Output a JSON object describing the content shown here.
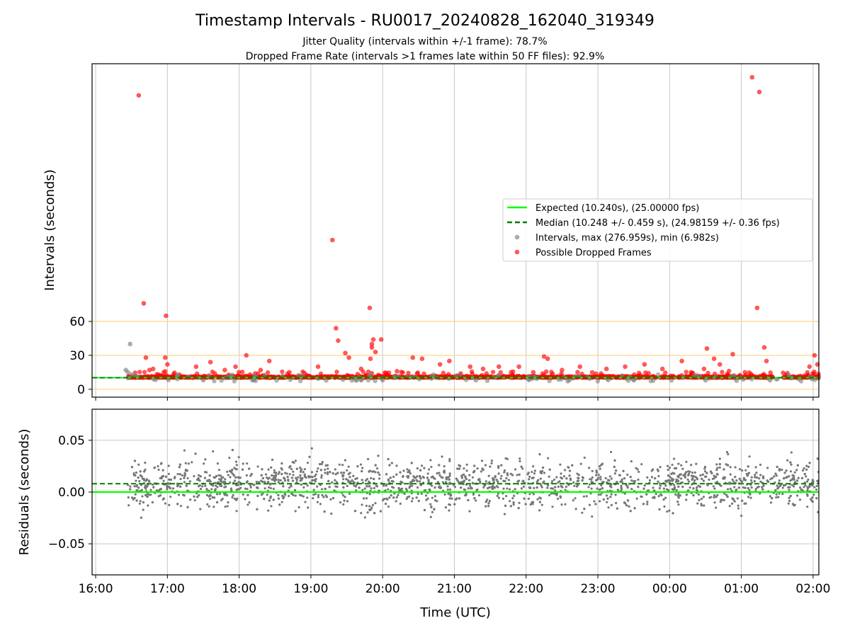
{
  "chart_data": [
    {
      "type": "scatter",
      "title": "Timestamp Intervals - RU0017_20240828_162040_319349",
      "subtitle_lines": [
        "Jitter Quality (intervals within +/-1 frame): 78.7%",
        "Dropped Frame Rate (intervals >1 frames late within 50 FF files): 92.9%"
      ],
      "xlabel": "",
      "ylabel": "Intervals (seconds)",
      "ytick_labels": [
        "0",
        "30",
        "60"
      ],
      "ytick_values": [
        0,
        30,
        60
      ],
      "ylim": [
        -7,
        288
      ],
      "xlim_hours": [
        15.95,
        26.08
      ],
      "xtick_hours": [
        16,
        17,
        18,
        19,
        20,
        21,
        22,
        23,
        24,
        25,
        26
      ],
      "grid": "vertical lines",
      "threshold_lines": [
        0,
        30,
        60
      ],
      "threshold_color": "#ffd27f",
      "expected_value": 10.24,
      "median_value": 10.248,
      "legend_position": "center-right",
      "legend": [
        {
          "label": "Expected (10.240s), (25.00000 fps)",
          "kind": "line",
          "color": "#00ff00"
        },
        {
          "label": "Median (10.248 +/- 0.459 s), (24.98159 +/- 0.36 fps)",
          "kind": "dashed-line",
          "color": "#008000"
        },
        {
          "label": "Intervals, max (276.959s), min (6.982s)",
          "kind": "marker",
          "color": "#808080"
        },
        {
          "label": "Possible Dropped Frames",
          "kind": "marker",
          "color": "#ff0000"
        }
      ],
      "series": [
        {
          "name": "Possible Dropped Frames",
          "color": "#ff0000",
          "points": [
            [
              16.6,
              260
            ],
            [
              16.67,
              76
            ],
            [
              16.7,
              28
            ],
            [
              16.98,
              65
            ],
            [
              16.97,
              28
            ],
            [
              17.0,
              22
            ],
            [
              16.75,
              17
            ],
            [
              16.8,
              18
            ],
            [
              17.95,
              20
            ],
            [
              18.1,
              30
            ],
            [
              18.3,
              17
            ],
            [
              18.42,
              25
            ],
            [
              19.3,
              132
            ],
            [
              19.35,
              54
            ],
            [
              19.38,
              43
            ],
            [
              19.48,
              32
            ],
            [
              19.53,
              28
            ],
            [
              19.82,
              72
            ],
            [
              19.87,
              44
            ],
            [
              19.85,
              40
            ],
            [
              19.85,
              37
            ],
            [
              19.9,
              33
            ],
            [
              19.98,
              44
            ],
            [
              19.83,
              27
            ],
            [
              20.42,
              28
            ],
            [
              20.55,
              27
            ],
            [
              20.93,
              25
            ],
            [
              21.22,
              20
            ],
            [
              21.62,
              20
            ],
            [
              21.9,
              20
            ],
            [
              22.25,
              29
            ],
            [
              22.3,
              27
            ],
            [
              22.75,
              20
            ],
            [
              23.12,
              18
            ],
            [
              23.38,
              20
            ],
            [
              23.65,
              22
            ],
            [
              24.17,
              25
            ],
            [
              24.48,
              18
            ],
            [
              24.52,
              36
            ],
            [
              24.62,
              27
            ],
            [
              24.88,
              31
            ],
            [
              25.15,
              276
            ],
            [
              25.25,
              263
            ],
            [
              25.22,
              72
            ],
            [
              25.32,
              37
            ],
            [
              25.35,
              25
            ],
            [
              25.95,
              20
            ],
            [
              26.02,
              30
            ],
            [
              26.06,
              22
            ],
            [
              17.4,
              20
            ],
            [
              17.6,
              24
            ],
            [
              17.8,
              17
            ],
            [
              18.7,
              15
            ],
            [
              19.1,
              20
            ],
            [
              19.7,
              18
            ],
            [
              20.2,
              16
            ],
            [
              20.8,
              22
            ],
            [
              21.4,
              18
            ],
            [
              22.1,
              15
            ],
            [
              22.5,
              17
            ],
            [
              23.9,
              18
            ],
            [
              24.3,
              15
            ],
            [
              24.7,
              22
            ],
            [
              25.05,
              15
            ]
          ]
        },
        {
          "name": "Intervals",
          "color": "#808080",
          "points": [
            [
              16.48,
              40
            ],
            [
              16.42,
              17
            ],
            [
              16.45,
              15
            ],
            [
              16.5,
              13
            ],
            [
              16.55,
              12
            ],
            [
              16.45,
              10
            ],
            [
              16.58,
              11
            ],
            [
              17.5,
              8
            ],
            [
              18.2,
              8
            ],
            [
              19.7,
              8
            ],
            [
              20.0,
              8
            ],
            [
              21.3,
              8
            ],
            [
              22.6,
              8
            ],
            [
              23.5,
              8
            ],
            [
              24.5,
              8
            ],
            [
              25.4,
              8
            ],
            [
              25.7,
              10
            ],
            [
              25.8,
              9
            ]
          ]
        }
      ]
    },
    {
      "type": "scatter",
      "xlabel": "Time (UTC)",
      "ylabel": "Residuals (seconds)",
      "ytick_labels": [
        "0.05",
        "0.00",
        "−0.05"
      ],
      "ytick_values": [
        0.05,
        0.0,
        -0.05
      ],
      "ylim": [
        -0.08,
        0.08
      ],
      "xtick_labels": [
        "16:00",
        "17:00",
        "18:00",
        "19:00",
        "20:00",
        "21:00",
        "22:00",
        "23:00",
        "00:00",
        "01:00",
        "02:00"
      ],
      "grid": "on",
      "expected_residual": 0.0,
      "median_residual": 0.008,
      "series": [
        {
          "name": "Residuals",
          "color": "#777777"
        }
      ]
    }
  ],
  "colors": {
    "expected": "#00ff00",
    "median": "#008000",
    "intervals": "#808080",
    "dropped": "#ff0000",
    "threshold": "#ffd27f",
    "grid": "#c8c8c8"
  }
}
